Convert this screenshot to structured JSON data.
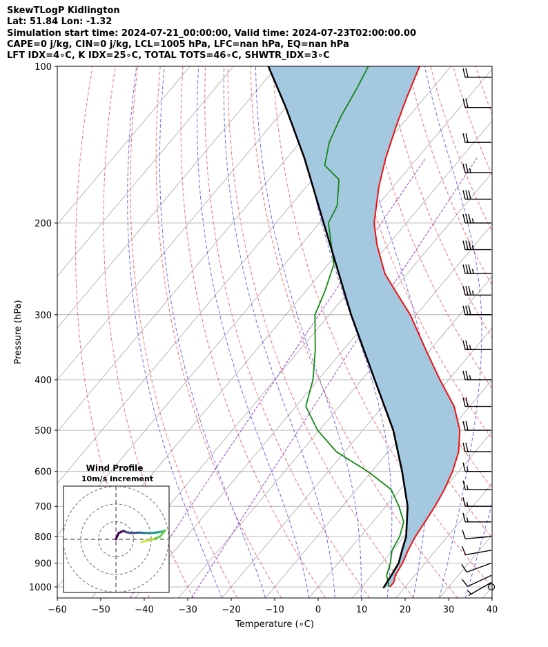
{
  "header": {
    "lines": [
      "SkewTLogP Kidlington",
      "Lat: 51.84   Lon: -1.32",
      "Simulation start time: 2024-07-21_00:00:00, Valid time: 2024-07-23T02:00:00.00",
      "CAPE=0 j/kg, CIN=0 j/kg, LCL=1005 hPa, LFC=nan hPa, EQ=nan hPa",
      "LFT IDX=4∘C, K IDX=25∘C, TOTAL TOTS=46∘C, SHWTR_IDX=3∘C"
    ]
  },
  "colors": {
    "temperature": "#ee1111",
    "dewpoint": "#118811",
    "parcel": "#000000",
    "cape_fill": "#a3c8e0",
    "dry_adiabat": "#f07070",
    "moist_adiabat": "#6a6ae8",
    "mixing_ratio": "#9a40c8",
    "isotherm_grid": "#b0b0b0"
  },
  "chart_data": [
    {
      "type": "line",
      "name": "skew-t",
      "xlabel": "Temperature (∘C)",
      "ylabel": "Pressure (hPa)",
      "xlim": [
        -60,
        40
      ],
      "ylim": [
        1050,
        100
      ],
      "y_scale": "log",
      "x_ticks": [
        "−60",
        "−50",
        "−40",
        "−30",
        "−20",
        "−10",
        "0",
        "10",
        "20",
        "30",
        "40"
      ],
      "x_tick_values": [
        -60,
        -50,
        -40,
        -30,
        -20,
        -10,
        0,
        10,
        20,
        30,
        40
      ],
      "y_ticks": [
        1000,
        900,
        800,
        700,
        600,
        500,
        400,
        300,
        200,
        100
      ],
      "grid": true,
      "series": [
        {
          "key": "temperature",
          "points": [
            [
              1000,
              16.5
            ],
            [
              980,
              16.5
            ],
            [
              950,
              15.5
            ],
            [
              900,
              14.8
            ],
            [
              850,
              13.6
            ],
            [
              800,
              12.6
            ],
            [
              750,
              12.0
            ],
            [
              700,
              11.3
            ],
            [
              650,
              10.2
            ],
            [
              600,
              8.6
            ],
            [
              550,
              6.2
            ],
            [
              500,
              2.3
            ],
            [
              450,
              -3.6
            ],
            [
              400,
              -12.0
            ],
            [
              350,
              -21.1
            ],
            [
              300,
              -31.4
            ],
            [
              270,
              -39.4
            ],
            [
              250,
              -45.2
            ],
            [
              220,
              -52.6
            ],
            [
              200,
              -57.4
            ],
            [
              170,
              -63.4
            ],
            [
              150,
              -67.3
            ],
            [
              130,
              -71.1
            ],
            [
              115,
              -74.1
            ],
            [
              100,
              -77.2
            ]
          ]
        },
        {
          "key": "dewpoint",
          "points": [
            [
              1000,
              16.3
            ],
            [
              950,
              13.5
            ],
            [
              900,
              12.0
            ],
            [
              850,
              9.9
            ],
            [
              800,
              9.0
            ],
            [
              750,
              7.1
            ],
            [
              700,
              3.0
            ],
            [
              650,
              -2.0
            ],
            [
              600,
              -10.9
            ],
            [
              550,
              -21.9
            ],
            [
              500,
              -30.4
            ],
            [
              450,
              -37.7
            ],
            [
              400,
              -41.2
            ],
            [
              350,
              -46.5
            ],
            [
              300,
              -53.3
            ],
            [
              270,
              -55.6
            ],
            [
              240,
              -58.7
            ],
            [
              200,
              -67.9
            ],
            [
              185,
              -69.3
            ],
            [
              165,
              -73.9
            ],
            [
              155,
              -79.9
            ],
            [
              140,
              -83.3
            ],
            [
              125,
              -85.6
            ],
            [
              110,
              -87.4
            ],
            [
              100,
              -89.0
            ]
          ]
        },
        {
          "key": "parcel",
          "points": [
            [
              1005,
              15.2
            ],
            [
              950,
              14.6
            ],
            [
              900,
              13.9
            ],
            [
              850,
              12.2
            ],
            [
              800,
              10.5
            ],
            [
              700,
              5.0
            ],
            [
              600,
              -3.0
            ],
            [
              500,
              -13.0
            ],
            [
              400,
              -27.0
            ],
            [
              300,
              -45.0
            ],
            [
              200,
              -69.0
            ],
            [
              150,
              -86.0
            ],
            [
              120,
              -100.0
            ],
            [
              100,
              -112.0
            ]
          ]
        }
      ]
    },
    {
      "type": "line",
      "name": "hodograph",
      "title": "Wind Profile",
      "subtitle": "10m/s increment",
      "rings_m_s": [
        10,
        20,
        30
      ],
      "points_uv": [
        [
          0,
          0
        ],
        [
          1.5,
          3.5
        ],
        [
          4.2,
          4.8
        ],
        [
          6.0,
          4.0
        ],
        [
          9.0,
          3.5
        ],
        [
          13.0,
          3.8
        ],
        [
          16.0,
          3.6
        ],
        [
          20.0,
          3.5
        ],
        [
          22.5,
          3.8
        ],
        [
          25.5,
          4.2
        ],
        [
          28.0,
          5.0
        ],
        [
          25.0,
          1.5
        ],
        [
          21.5,
          0.2
        ],
        [
          18.0,
          -0.7
        ],
        [
          14.5,
          -1.6
        ]
      ]
    },
    {
      "type": "scatter",
      "name": "wind-barbs",
      "points": [
        [
          1000,
          225,
          1
        ],
        [
          980,
          240,
          5
        ],
        [
          950,
          245,
          10
        ],
        [
          900,
          250,
          10
        ],
        [
          850,
          260,
          10
        ],
        [
          800,
          265,
          10
        ],
        [
          750,
          270,
          15
        ],
        [
          700,
          270,
          15
        ],
        [
          650,
          270,
          15
        ],
        [
          600,
          270,
          15
        ],
        [
          550,
          270,
          20
        ],
        [
          500,
          270,
          20
        ],
        [
          450,
          270,
          20
        ],
        [
          400,
          270,
          25
        ],
        [
          350,
          270,
          25
        ],
        [
          300,
          270,
          30
        ],
        [
          275,
          270,
          35
        ],
        [
          250,
          270,
          35
        ],
        [
          225,
          270,
          35
        ],
        [
          200,
          270,
          35
        ],
        [
          180,
          270,
          30
        ],
        [
          160,
          270,
          25
        ],
        [
          140,
          270,
          20
        ],
        [
          120,
          270,
          20
        ],
        [
          105,
          270,
          20
        ]
      ]
    }
  ]
}
